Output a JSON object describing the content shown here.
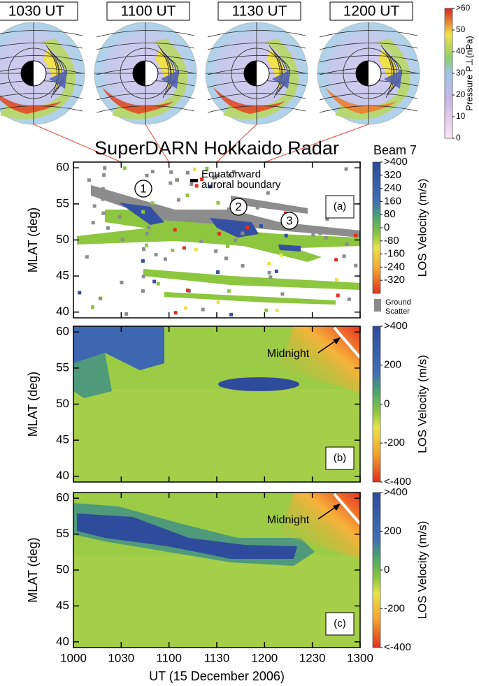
{
  "chart_data": [
    {
      "type": "polar-maps",
      "titles": [
        "1030 UT",
        "1100 UT",
        "1130 UT",
        "1200 UT"
      ],
      "colorbar": {
        "label": "Pressure P⊥(nPa)",
        "lim": [
          0,
          60
        ],
        "ticks": [
          0,
          10,
          20,
          30,
          40,
          50,
          {
            "value": 60,
            "label": ">60"
          }
        ]
      }
    },
    {
      "type": "heatmap",
      "title": "SuperDARN Hokkaido Radar",
      "beam": "Beam 7",
      "panel_label": "(a)",
      "ylabel": "MLAT (deg)",
      "ylim": [
        39.2,
        60.8
      ],
      "yticks": [
        40,
        45,
        50,
        55,
        60
      ],
      "xlim": [
        10,
        13
      ],
      "xticks": [
        {
          "value": 10,
          "label": "1000"
        },
        {
          "value": 10.5,
          "label": "1030"
        },
        {
          "value": 11,
          "label": "1100"
        },
        {
          "value": 11.5,
          "label": "1130"
        },
        {
          "value": 12,
          "label": "1200"
        },
        {
          "value": 12.5,
          "label": "1230"
        },
        {
          "value": 13,
          "label": "1300"
        }
      ],
      "annotations": [
        "1",
        "2",
        "3"
      ],
      "boundary_legend": [
        "Equatorward",
        "auroral boundary"
      ],
      "ground_scatter": [
        "Ground",
        "Scatter"
      ],
      "colorbar": {
        "label": "LOS Velocity (m/s)",
        "lim": [
          -400,
          400
        ],
        "ticks": [
          {
            "value": 400,
            "label": ">400"
          },
          320,
          240,
          160,
          80,
          0,
          -80,
          -160,
          -240,
          -320
        ]
      }
    },
    {
      "type": "heatmap",
      "panel_label": "(b)",
      "ylabel": "MLAT (deg)",
      "ylim": [
        39.2,
        60.8
      ],
      "yticks": [
        40,
        45,
        50,
        55,
        60
      ],
      "xlim": [
        10,
        13
      ],
      "xticks": [
        {
          "value": 10,
          "label": "1000"
        },
        {
          "value": 10.5,
          "label": "1030"
        },
        {
          "value": 11,
          "label": "1100"
        },
        {
          "value": 11.5,
          "label": "1130"
        },
        {
          "value": 12,
          "label": "1200"
        },
        {
          "value": 12.5,
          "label": "1230"
        },
        {
          "value": 13,
          "label": "1300"
        }
      ],
      "annotation": "Midnight",
      "colorbar": {
        "label": "LOS Velocity (m/s)",
        "lim": [
          -400,
          400
        ],
        "ticks": [
          {
            "value": 400,
            "label": ">400"
          },
          200,
          0,
          -200,
          {
            "value": -400,
            "label": "<-400"
          }
        ]
      }
    },
    {
      "type": "heatmap",
      "panel_label": "(c)",
      "ylabel": "MLAT (deg)",
      "xlabel": "UT (15 December 2006)",
      "ylim": [
        39.2,
        60.8
      ],
      "yticks": [
        40,
        45,
        50,
        55,
        60
      ],
      "xlim": [
        10,
        13
      ],
      "xticks": [
        {
          "value": 10,
          "label": "1000"
        },
        {
          "value": 10.5,
          "label": "1030"
        },
        {
          "value": 11,
          "label": "1100"
        },
        {
          "value": 11.5,
          "label": "1130"
        },
        {
          "value": 12,
          "label": "1200"
        },
        {
          "value": 12.5,
          "label": "1230"
        },
        {
          "value": 13,
          "label": "1300"
        }
      ],
      "annotation": "Midnight",
      "colorbar": {
        "label": "LOS Velocity (m/s)",
        "lim": [
          -400,
          400
        ],
        "ticks": [
          {
            "value": 400,
            "label": ">400"
          },
          200,
          0,
          -200,
          {
            "value": -400,
            "label": "<-400"
          }
        ]
      }
    }
  ]
}
